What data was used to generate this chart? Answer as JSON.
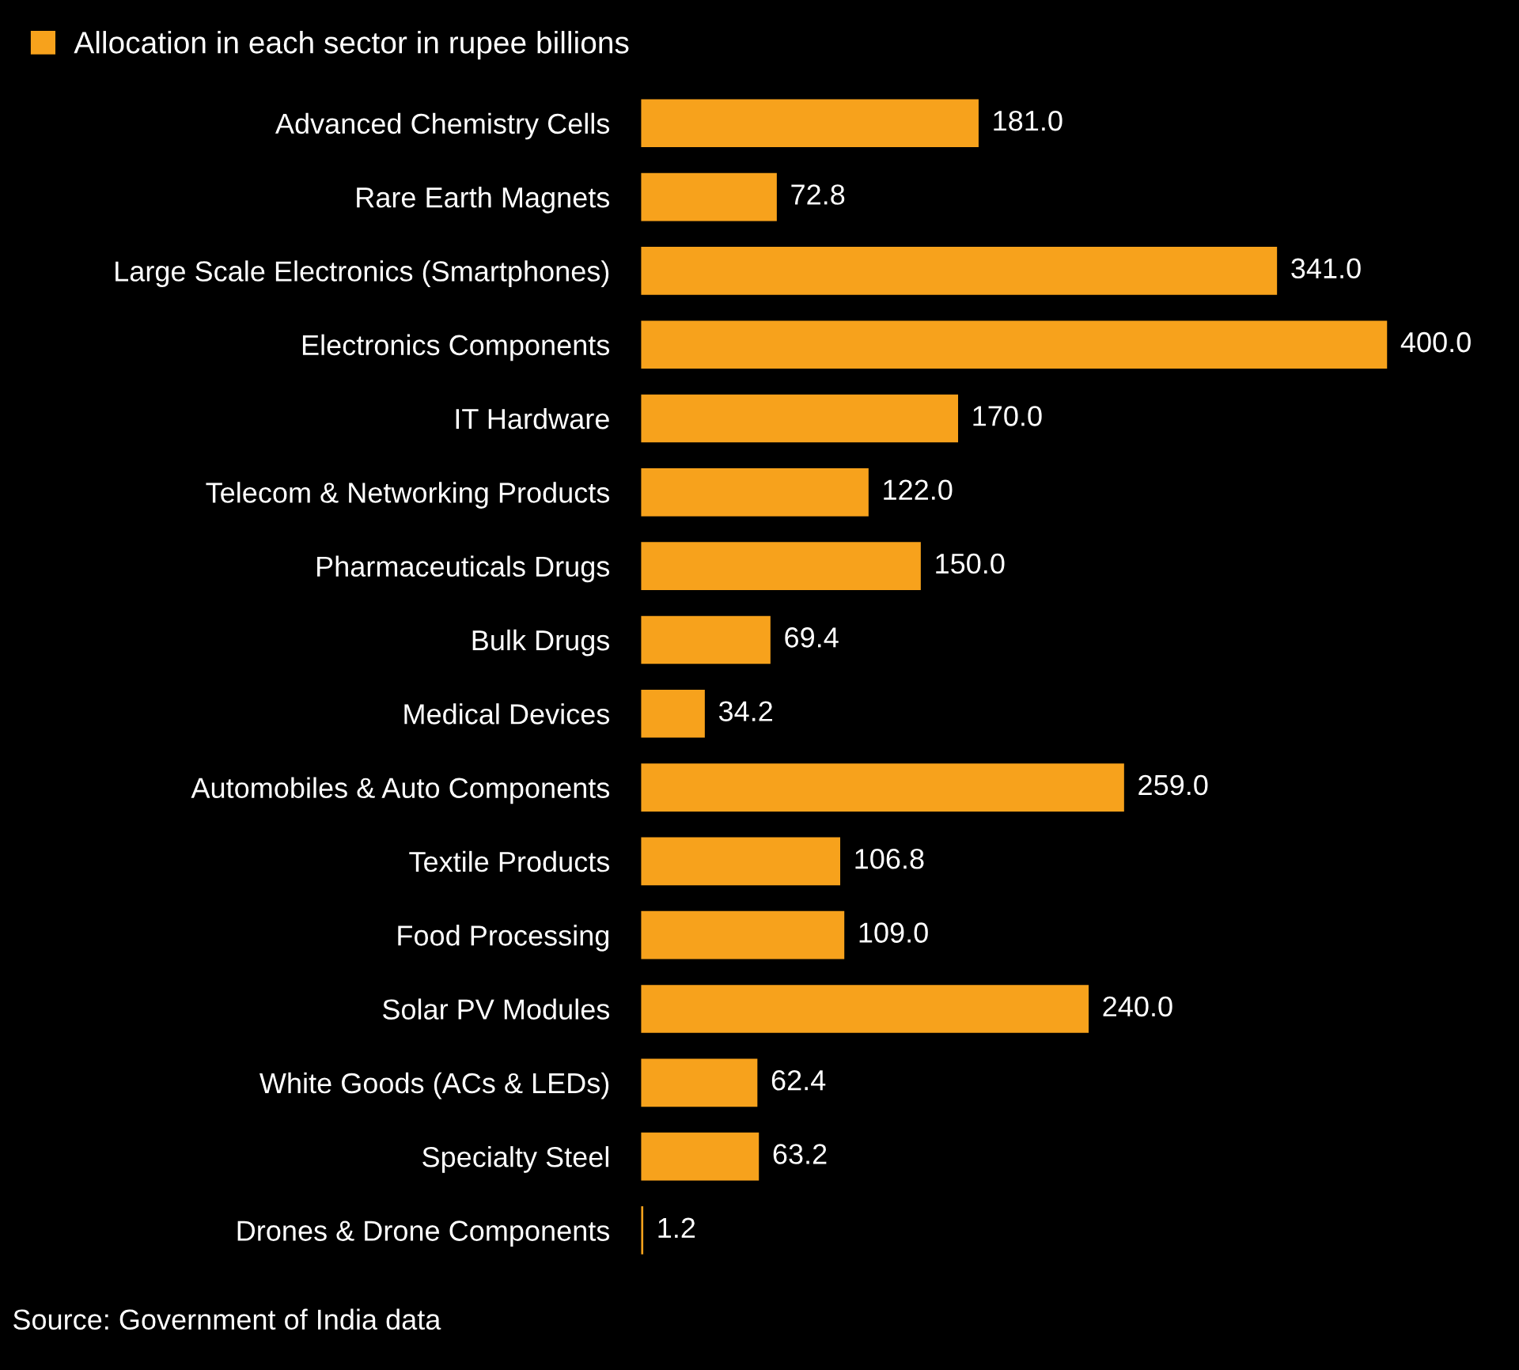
{
  "chart_data": {
    "type": "bar",
    "orientation": "horizontal",
    "categories": [
      "Advanced Chemistry Cells",
      "Rare Earth Magnets",
      "Large Scale Electronics (Smartphones)",
      "Electronics Components",
      "IT Hardware",
      "Telecom & Networking Products",
      "Pharmaceuticals Drugs",
      "Bulk Drugs",
      "Medical Devices",
      "Automobiles & Auto Components",
      "Textile Products",
      "Food Processing",
      "Solar PV Modules",
      "White Goods (ACs & LEDs)",
      "Specialty Steel",
      "Drones & Drone Components"
    ],
    "series": [
      {
        "name": "Allocation in each sector in rupee billions",
        "color": "#f7a21c",
        "values": [
          181.0,
          72.8,
          341.0,
          400.0,
          170.0,
          122.0,
          150.0,
          69.4,
          34.2,
          259.0,
          106.8,
          109.0,
          240.0,
          62.4,
          63.2,
          1.2
        ],
        "value_labels": [
          "181.0",
          "72.8",
          "341.0",
          "400.0",
          "170.0",
          "122.0",
          "150.0",
          "69.4",
          "34.2",
          "259.0",
          "106.8",
          "109.0",
          "240.0",
          "62.4",
          "63.2",
          "1.2"
        ]
      }
    ],
    "legend": "top left",
    "tick_labels": "y",
    "grid": false,
    "annotations": [
      "Source: Government of India data"
    ]
  }
}
